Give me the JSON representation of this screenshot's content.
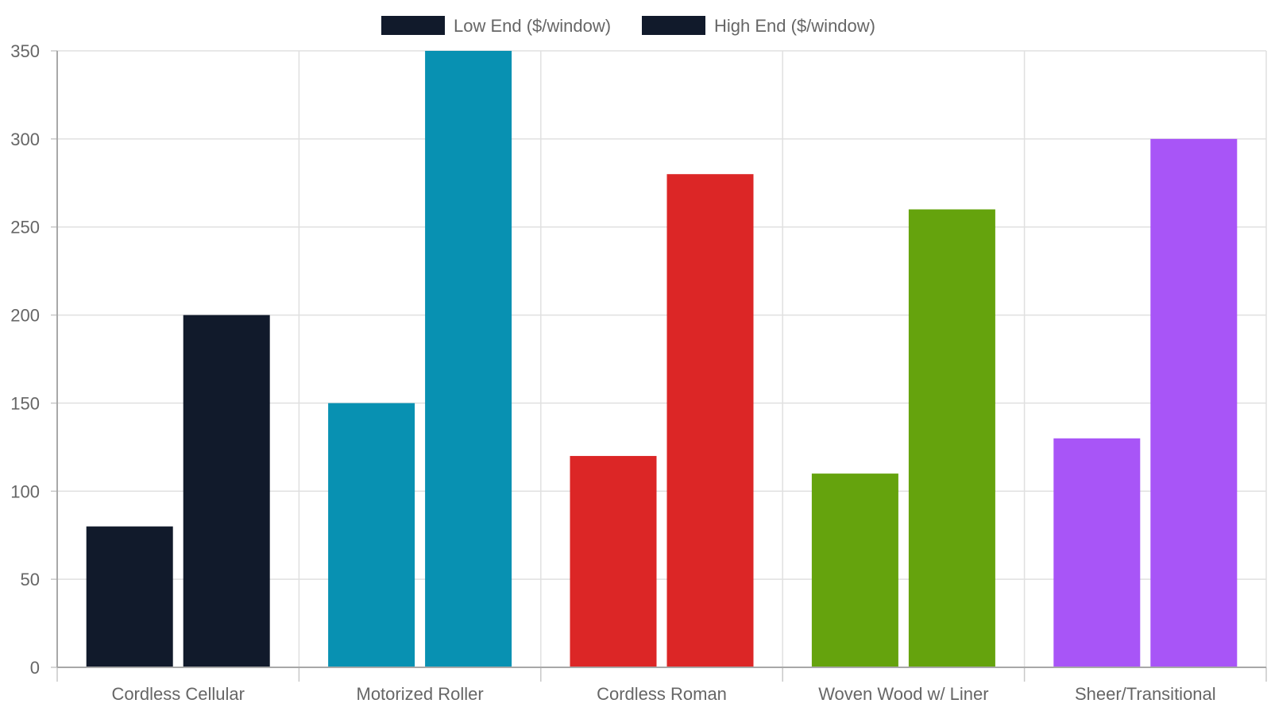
{
  "chart_data": {
    "type": "bar",
    "categories": [
      "Cordless Cellular",
      "Motorized Roller",
      "Cordless Roman",
      "Woven Wood w/ Liner",
      "Sheer/Transitional"
    ],
    "series": [
      {
        "name": "Low End ($/window)",
        "values": [
          80,
          150,
          120,
          110,
          130
        ]
      },
      {
        "name": "High End ($/window)",
        "values": [
          200,
          350,
          280,
          260,
          300
        ]
      }
    ],
    "category_colors": [
      "#111a2b",
      "#0891b2",
      "#dc2626",
      "#65a30d",
      "#a855f7"
    ],
    "legend_swatch_color": "#111a2b",
    "yticks": [
      "0",
      "50",
      "100",
      "150",
      "200",
      "250",
      "300",
      "350"
    ],
    "ylim": [
      0,
      350
    ],
    "grid": true,
    "legend_position": "top-center"
  }
}
